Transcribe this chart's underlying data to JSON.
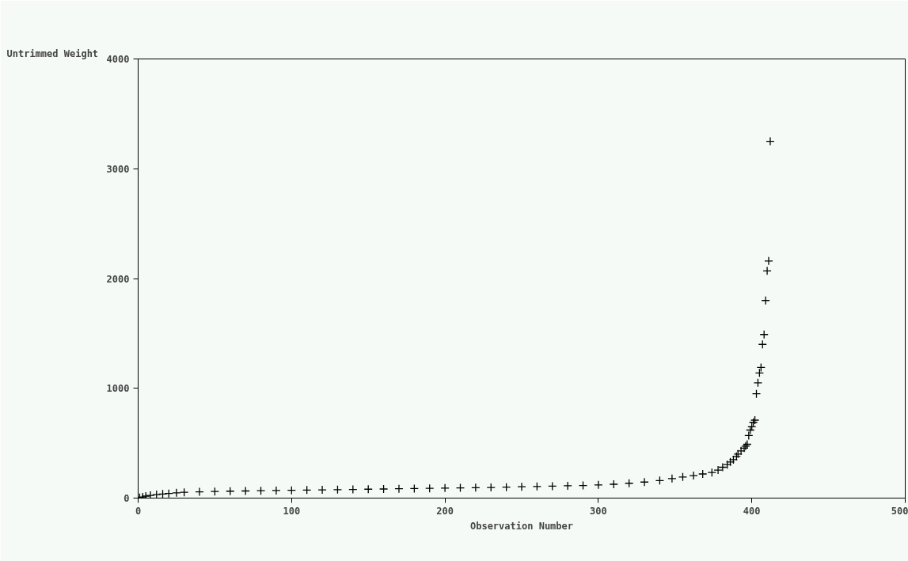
{
  "chart_data": {
    "type": "scatter",
    "xlabel": "Observation Number",
    "ylabel": "Untrimmed Weight",
    "marker": "cross",
    "grid": false,
    "xlim": [
      0,
      500
    ],
    "xticks": [
      0,
      100,
      200,
      300,
      400,
      500
    ],
    "ylim": [
      0,
      4000
    ],
    "yticks": [
      0,
      1000,
      2000,
      3000,
      4000
    ],
    "series": [
      {
        "color": "#000000",
        "x": [
          1,
          3,
          5,
          8,
          12,
          16,
          20,
          25,
          30,
          40,
          50,
          60,
          70,
          80,
          90,
          100,
          110,
          120,
          130,
          140,
          150,
          160,
          170,
          180,
          190,
          200,
          210,
          220,
          230,
          240,
          250,
          260,
          270,
          280,
          290,
          300,
          310,
          320,
          330,
          340,
          348,
          355,
          362,
          368,
          374,
          378,
          381,
          384,
          386,
          388,
          390,
          391,
          393,
          395,
          396,
          397,
          398,
          399,
          400,
          401,
          402,
          403,
          404,
          405,
          406,
          407,
          408,
          409,
          410,
          411,
          412
        ],
        "values": [
          5,
          10,
          18,
          25,
          32,
          37,
          42,
          48,
          53,
          57,
          60,
          63,
          65,
          67,
          69,
          71,
          73,
          75,
          77,
          79,
          81,
          83,
          85,
          87,
          89,
          91,
          93,
          95,
          97,
          100,
          103,
          106,
          109,
          112,
          115,
          120,
          126,
          135,
          146,
          160,
          178,
          192,
          205,
          220,
          233,
          255,
          281,
          305,
          329,
          350,
          380,
          401,
          430,
          455,
          473,
          490,
          570,
          620,
          650,
          690,
          710,
          950,
          1050,
          1140,
          1190,
          1400,
          1490,
          1800,
          2070,
          2160,
          3250
        ]
      }
    ]
  }
}
